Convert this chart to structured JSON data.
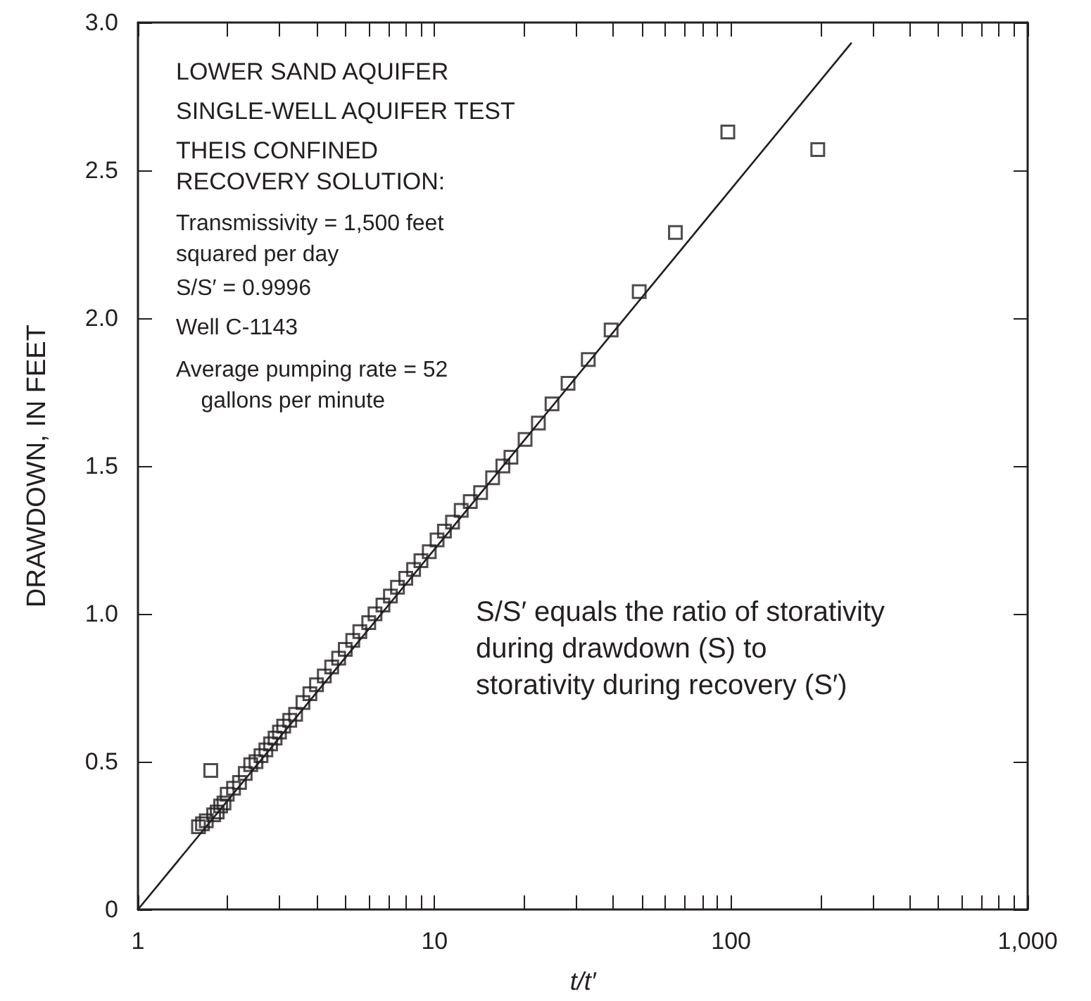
{
  "chart_data": {
    "type": "scatter",
    "xlabel": "t/t′",
    "ylabel": "DRAWDOWN, IN FEET",
    "log": "x",
    "grid": false,
    "xlim": [
      1,
      1000
    ],
    "xticks": [
      1,
      10,
      100,
      {
        "value": 1000,
        "label": "1,000"
      }
    ],
    "ylim": [
      0,
      3
    ],
    "yticks": [
      0,
      0.5,
      {
        "value": 1,
        "label": "1.0"
      },
      1.5,
      {
        "value": 2,
        "label": "2.0"
      },
      2.5,
      {
        "value": 3,
        "label": "3.0"
      }
    ],
    "annotations": [
      "LOWER SAND AQUIFER",
      "SINGLE-WELL AQUIFER TEST",
      "THEIS CONFINED\nRECOVERY SOLUTION:",
      "Transmissivity = 1,500 feet\nsquared per day",
      "S/S′ = 0.9996",
      "Well C-1143",
      "Average pumping rate = 52\n    gallons per minute",
      "S/S′ equals the ratio of storativity\nduring drawdown (S) to\nstorativity during recovery (S′)"
    ],
    "series": [
      {
        "color": "#231f20",
        "marker": "square",
        "x": [
          1.6,
          1.65,
          1.7,
          1.76,
          1.8,
          1.85,
          1.9,
          1.95,
          2.0,
          2.1,
          2.2,
          2.3,
          2.4,
          2.5,
          2.6,
          2.7,
          2.8,
          2.9,
          3.0,
          3.1,
          3.25,
          3.4,
          3.6,
          3.8,
          4.0,
          4.25,
          4.5,
          4.75,
          5.0,
          5.3,
          5.6,
          6.0,
          6.3,
          6.7,
          7.1,
          7.5,
          8.0,
          8.5,
          9.0,
          9.6,
          10.2,
          10.8,
          11.5,
          12.3,
          13.2,
          14.3,
          15.7,
          17.0,
          18.1,
          20.2,
          22.4,
          24.9,
          28.2,
          33,
          39.4,
          49,
          64.9,
          97.5,
          196
        ],
        "values": [
          0.28,
          0.29,
          0.3,
          0.47,
          0.32,
          0.33,
          0.35,
          0.36,
          0.39,
          0.41,
          0.43,
          0.46,
          0.49,
          0.5,
          0.52,
          0.54,
          0.56,
          0.58,
          0.6,
          0.62,
          0.64,
          0.66,
          0.7,
          0.73,
          0.76,
          0.79,
          0.82,
          0.85,
          0.88,
          0.91,
          0.94,
          0.97,
          1.0,
          1.03,
          1.06,
          1.09,
          1.12,
          1.15,
          1.18,
          1.21,
          1.25,
          1.28,
          1.31,
          1.35,
          1.38,
          1.41,
          1.46,
          1.5,
          1.53,
          1.59,
          1.645,
          1.71,
          1.78,
          1.86,
          1.96,
          2.09,
          2.29,
          2.63,
          2.57
        ]
      },
      {
        "type": "line",
        "color": "#231f20",
        "marker": "none",
        "line_style": "solid",
        "x": [
          1,
          254
        ],
        "values": [
          0,
          2.93
        ]
      }
    ]
  }
}
